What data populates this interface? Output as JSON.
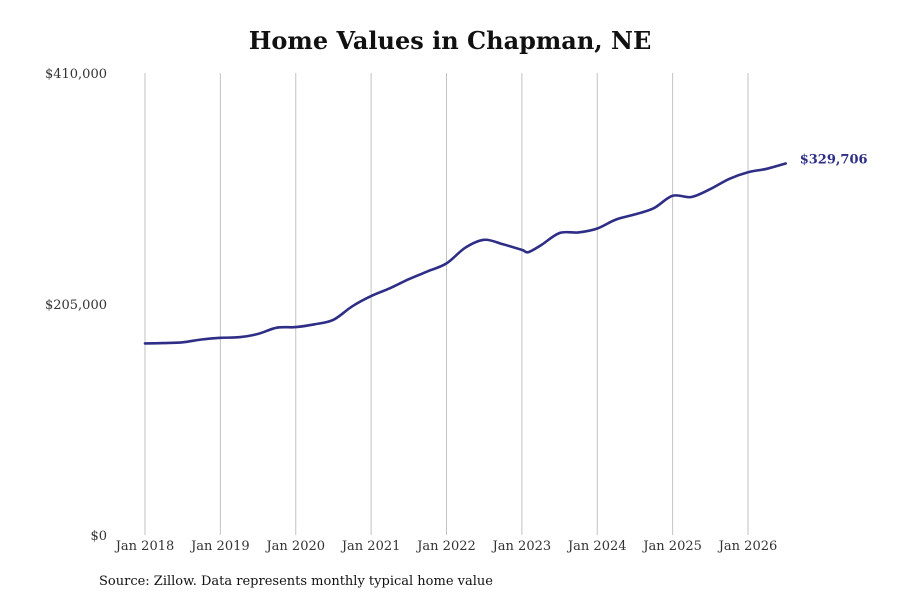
{
  "chart_data": {
    "type": "line",
    "title": "Home Values in Chapman, NE",
    "xlabel": "",
    "ylabel": "",
    "ylim": [
      0,
      410000
    ],
    "xlim": [
      "2018-01",
      "2026-07"
    ],
    "y_ticks": [
      "$0",
      "$205,000",
      "$410,000"
    ],
    "x_ticks": [
      "Jan 2018",
      "Jan 2019",
      "Jan 2020",
      "Jan 2021",
      "Jan 2022",
      "Jan 2023",
      "Jan 2024",
      "Jan 2025",
      "Jan 2026"
    ],
    "grid": "vertical",
    "end_label": "$329,706",
    "series": [
      {
        "color": "#2e2e86",
        "points": [
          [
            "2018-01",
            170000
          ],
          [
            "2018-04",
            170300
          ],
          [
            "2018-07",
            171000
          ],
          [
            "2018-10",
            173500
          ],
          [
            "2019-01",
            175000
          ],
          [
            "2019-04",
            175500
          ],
          [
            "2019-07",
            178500
          ],
          [
            "2019-10",
            184000
          ],
          [
            "2020-01",
            184500
          ],
          [
            "2020-04",
            187000
          ],
          [
            "2020-07",
            191000
          ],
          [
            "2020-10",
            203000
          ],
          [
            "2021-01",
            212000
          ],
          [
            "2021-04",
            219000
          ],
          [
            "2021-07",
            227000
          ],
          [
            "2021-10",
            234000
          ],
          [
            "2022-01",
            241000
          ],
          [
            "2022-04",
            255000
          ],
          [
            "2022-07",
            262000
          ],
          [
            "2022-10",
            258000
          ],
          [
            "2023-01",
            253000
          ],
          [
            "2023-02",
            251000
          ],
          [
            "2023-04",
            257000
          ],
          [
            "2023-07",
            268000
          ],
          [
            "2023-10",
            268500
          ],
          [
            "2024-01",
            272000
          ],
          [
            "2024-04",
            280000
          ],
          [
            "2024-07",
            284500
          ],
          [
            "2024-10",
            290000
          ],
          [
            "2025-01",
            301000
          ],
          [
            "2025-04",
            300000
          ],
          [
            "2025-07",
            307000
          ],
          [
            "2025-10",
            316000
          ],
          [
            "2026-01",
            322000
          ],
          [
            "2026-04",
            325000
          ],
          [
            "2026-07",
            329706
          ]
        ]
      }
    ]
  },
  "footer": {
    "source": "Source: Zillow. Data represents monthly typical home value"
  }
}
